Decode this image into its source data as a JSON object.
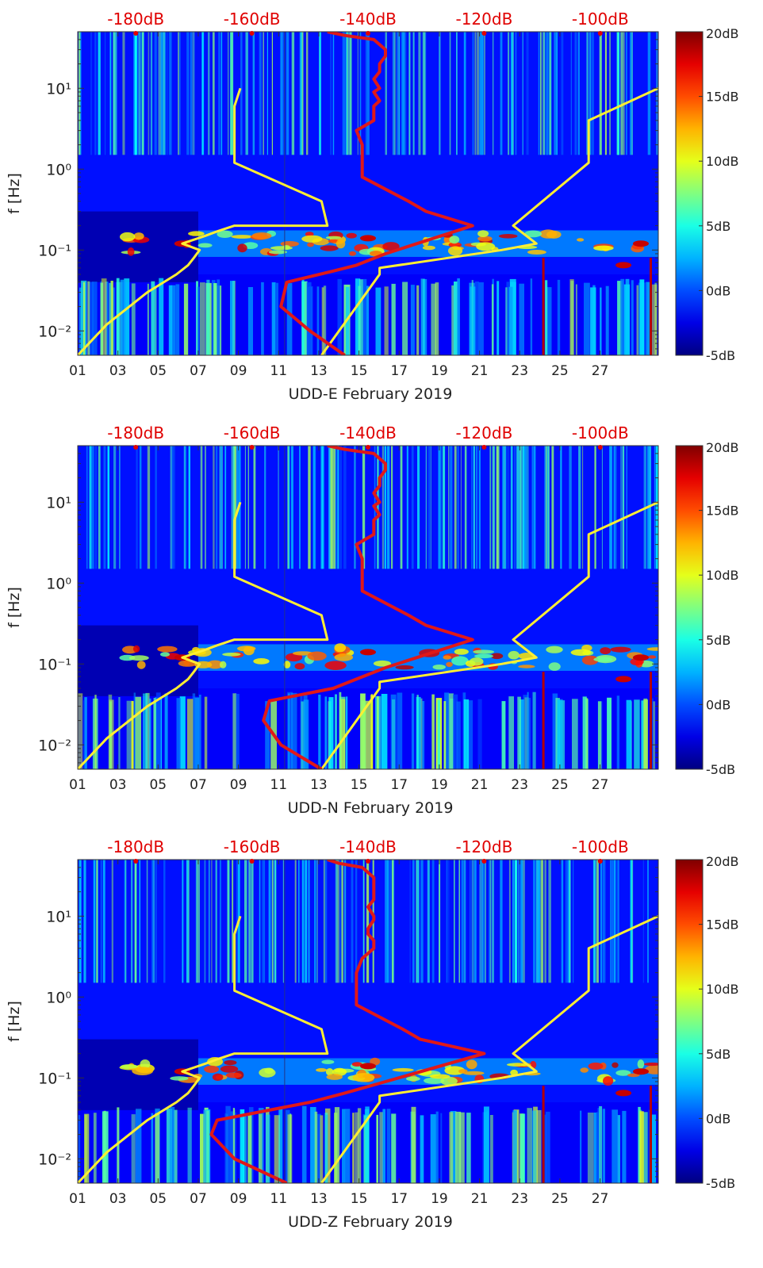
{
  "colors": {
    "noise_model": "#ffee33",
    "mean_psd": "#e01818",
    "top_axis_text": "#e00000",
    "axis": "#333333"
  },
  "chart_data": [
    {
      "type": "heatmap",
      "station": "UDD-E",
      "xlabel": "UDD-E February 2019",
      "ylabel": "f [Hz]",
      "x_ticks": [
        "01",
        "03",
        "05",
        "07",
        "09",
        "11",
        "13",
        "15",
        "17",
        "19",
        "21",
        "23",
        "25",
        "27"
      ],
      "xlim": [
        1,
        29.9
      ],
      "y_scale": "log",
      "ylim": [
        0.005,
        50
      ],
      "y_ticks": [
        {
          "value": 0.01,
          "label": "10⁻²"
        },
        {
          "value": 0.1,
          "label": "10⁻¹"
        },
        {
          "value": 1,
          "label": "10⁰"
        },
        {
          "value": 10,
          "label": "10¹"
        }
      ],
      "top_axis": {
        "range_db": [
          -190,
          -90
        ],
        "ticks": [
          "-180dB",
          "-160dB",
          "-140dB",
          "-120dB",
          "-100dB"
        ]
      },
      "colorbar": {
        "range_db": [
          -5,
          20
        ],
        "ticks": [
          "20dB",
          "15dB",
          "10dB",
          "5dB",
          "0dB",
          "-5dB"
        ],
        "colormap": "jet"
      },
      "series": [
        {
          "kind": "low-noise-model",
          "db": [
            -190,
            -185,
            -178,
            -173,
            -171,
            -170,
            -169,
            -172,
            -168,
            -166,
            -163,
            -147,
            -148,
            -163,
            -163,
            -162
          ],
          "f": [
            0.005,
            0.012,
            0.03,
            0.05,
            0.065,
            0.08,
            0.1,
            0.12,
            0.15,
            0.17,
            0.2,
            0.2,
            0.4,
            1.2,
            6,
            10
          ]
        },
        {
          "kind": "high-noise-model",
          "db": [
            -148,
            -138,
            -138,
            -117,
            -111,
            -115,
            -102,
            -102,
            -90
          ],
          "f": [
            0.005,
            0.05,
            0.06,
            0.1,
            0.12,
            0.2,
            1.2,
            4,
            10
          ]
        },
        {
          "kind": "mean-psd",
          "db": [
            -144,
            -150,
            -155,
            -154,
            -146,
            -142,
            -137,
            -122,
            -130,
            -133,
            -141,
            -141,
            -141,
            -142,
            -139,
            -139,
            -139,
            -138,
            -139,
            -138,
            -139,
            -138,
            -138,
            -137,
            -137,
            -139,
            -144,
            -147
          ],
          "f": [
            0.005,
            0.01,
            0.02,
            0.04,
            0.055,
            0.065,
            0.09,
            0.2,
            0.3,
            0.4,
            0.8,
            1.2,
            2,
            3,
            4,
            5,
            6,
            7,
            9,
            10,
            13,
            16,
            20,
            25,
            30,
            40,
            45,
            50
          ]
        }
      ]
    },
    {
      "type": "heatmap",
      "station": "UDD-N",
      "xlabel": "UDD-N February 2019",
      "ylabel": "f [Hz]",
      "x_ticks": [
        "01",
        "03",
        "05",
        "07",
        "09",
        "11",
        "13",
        "15",
        "17",
        "19",
        "21",
        "23",
        "25",
        "27"
      ],
      "xlim": [
        1,
        29.9
      ],
      "y_scale": "log",
      "ylim": [
        0.005,
        50
      ],
      "y_ticks": [
        {
          "value": 0.01,
          "label": "10⁻²"
        },
        {
          "value": 0.1,
          "label": "10⁻¹"
        },
        {
          "value": 1,
          "label": "10⁰"
        },
        {
          "value": 10,
          "label": "10¹"
        }
      ],
      "top_axis": {
        "range_db": [
          -190,
          -90
        ],
        "ticks": [
          "-180dB",
          "-160dB",
          "-140dB",
          "-120dB",
          "-100dB"
        ]
      },
      "colorbar": {
        "range_db": [
          -5,
          20
        ],
        "ticks": [
          "20dB",
          "15dB",
          "10dB",
          "5dB",
          "0dB",
          "-5dB"
        ],
        "colormap": "jet"
      },
      "series": [
        {
          "kind": "low-noise-model",
          "db": [
            -190,
            -185,
            -178,
            -173,
            -171,
            -170,
            -169,
            -172,
            -168,
            -166,
            -163,
            -147,
            -148,
            -163,
            -163,
            -162
          ],
          "f": [
            0.005,
            0.012,
            0.03,
            0.05,
            0.065,
            0.08,
            0.1,
            0.12,
            0.15,
            0.17,
            0.2,
            0.2,
            0.4,
            1.2,
            6,
            10
          ]
        },
        {
          "kind": "high-noise-model",
          "db": [
            -148,
            -138,
            -138,
            -117,
            -111,
            -115,
            -102,
            -102,
            -90
          ],
          "f": [
            0.005,
            0.05,
            0.06,
            0.1,
            0.12,
            0.2,
            1.2,
            4,
            10
          ]
        },
        {
          "kind": "mean-psd",
          "db": [
            -148,
            -155,
            -158,
            -157,
            -146,
            -142,
            -137,
            -122,
            -130,
            -133,
            -141,
            -141,
            -141,
            -142,
            -139,
            -139,
            -139,
            -138,
            -139,
            -138,
            -139,
            -138,
            -138,
            -137,
            -137,
            -139,
            -144,
            -147
          ],
          "f": [
            0.005,
            0.01,
            0.02,
            0.035,
            0.05,
            0.065,
            0.09,
            0.2,
            0.3,
            0.4,
            0.8,
            1.2,
            2,
            3,
            4,
            5,
            6,
            7,
            9,
            10,
            13,
            16,
            20,
            25,
            30,
            40,
            45,
            50
          ]
        }
      ]
    },
    {
      "type": "heatmap",
      "station": "UDD-Z",
      "xlabel": "UDD-Z February 2019",
      "ylabel": "f [Hz]",
      "x_ticks": [
        "01",
        "03",
        "05",
        "07",
        "09",
        "11",
        "13",
        "15",
        "17",
        "19",
        "21",
        "23",
        "25",
        "27"
      ],
      "xlim": [
        1,
        29.9
      ],
      "y_scale": "log",
      "ylim": [
        0.005,
        50
      ],
      "y_ticks": [
        {
          "value": 0.01,
          "label": "10⁻²"
        },
        {
          "value": 0.1,
          "label": "10⁻¹"
        },
        {
          "value": 1,
          "label": "10⁰"
        },
        {
          "value": 10,
          "label": "10¹"
        }
      ],
      "top_axis": {
        "range_db": [
          -190,
          -90
        ],
        "ticks": [
          "-180dB",
          "-160dB",
          "-140dB",
          "-120dB",
          "-100dB"
        ]
      },
      "colorbar": {
        "range_db": [
          -5,
          20
        ],
        "ticks": [
          "20dB",
          "15dB",
          "10dB",
          "5dB",
          "0dB",
          "-5dB"
        ],
        "colormap": "jet"
      },
      "series": [
        {
          "kind": "low-noise-model",
          "db": [
            -190,
            -185,
            -178,
            -173,
            -171,
            -170,
            -169,
            -172,
            -168,
            -166,
            -163,
            -147,
            -148,
            -163,
            -163,
            -162
          ],
          "f": [
            0.005,
            0.012,
            0.03,
            0.05,
            0.065,
            0.08,
            0.1,
            0.12,
            0.15,
            0.17,
            0.2,
            0.2,
            0.4,
            1.2,
            6,
            10
          ]
        },
        {
          "kind": "high-noise-model",
          "db": [
            -148,
            -138,
            -138,
            -117,
            -111,
            -115,
            -102,
            -102,
            -90
          ],
          "f": [
            0.005,
            0.05,
            0.06,
            0.1,
            0.12,
            0.2,
            1.2,
            4,
            10
          ]
        },
        {
          "kind": "mean-psd",
          "db": [
            -154,
            -163,
            -167,
            -166,
            -150,
            -144,
            -137,
            -120,
            -131,
            -134,
            -142,
            -142,
            -142,
            -141,
            -139,
            -139,
            -140,
            -140,
            -139,
            -139,
            -140,
            -139,
            -139,
            -139,
            -139,
            -141,
            -145,
            -147
          ],
          "f": [
            0.005,
            0.01,
            0.02,
            0.03,
            0.05,
            0.065,
            0.09,
            0.2,
            0.3,
            0.4,
            0.8,
            1.2,
            2,
            3,
            4,
            5,
            6,
            7,
            9,
            10,
            13,
            16,
            20,
            25,
            30,
            40,
            45,
            50
          ]
        }
      ]
    }
  ]
}
